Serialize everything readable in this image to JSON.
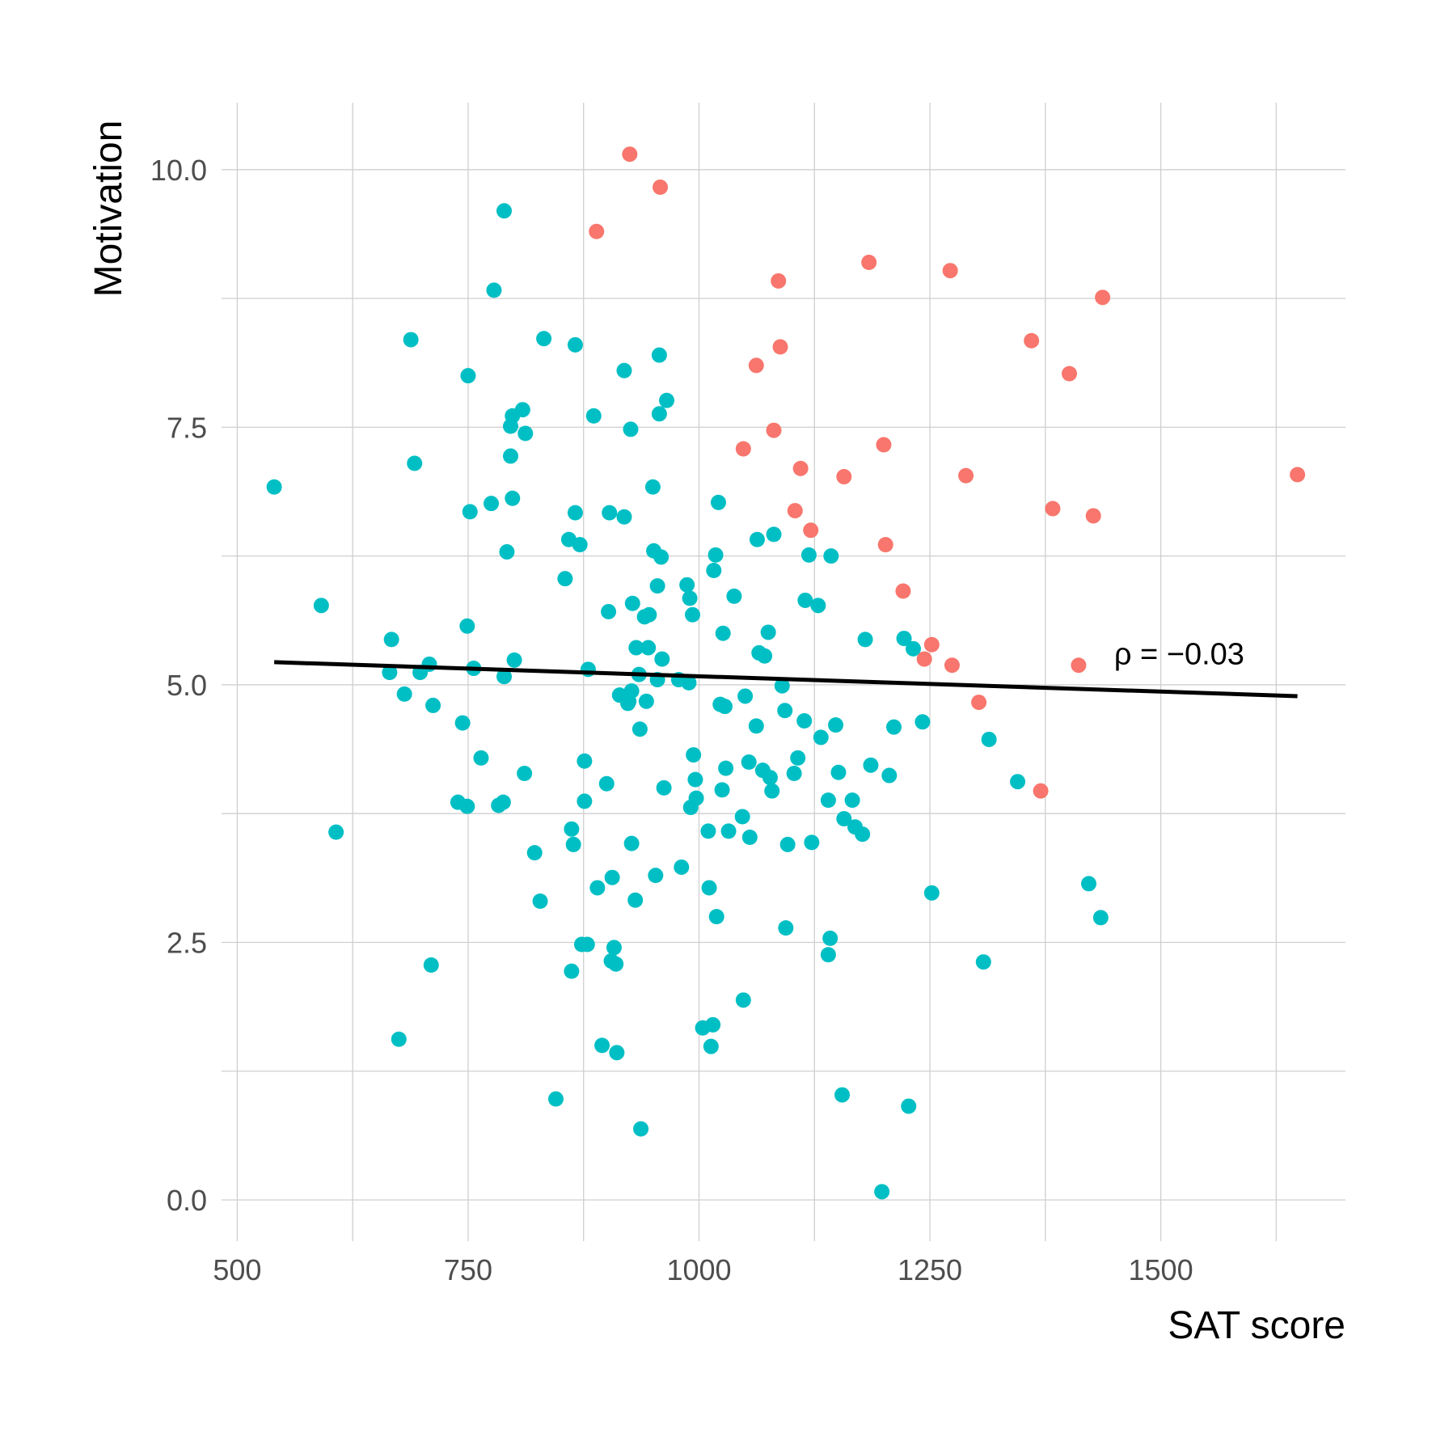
{
  "chart_data": {
    "type": "scatter",
    "xlabel": "SAT score",
    "ylabel": "Motivation",
    "xlim": [
      483,
      1700
    ],
    "ylim": [
      -0.4,
      10.65
    ],
    "x_major_ticks": [
      500,
      750,
      1000,
      1250,
      1500
    ],
    "x_major_tick_labels": [
      "500",
      "750",
      "1000",
      "1250",
      "1500"
    ],
    "x_minor_ticks": [
      625,
      875,
      1125,
      1375,
      1625
    ],
    "y_major_ticks": [
      0,
      2.5,
      5,
      7.5,
      10
    ],
    "y_major_tick_labels": [
      "0.0",
      "2.5",
      "5.0",
      "7.5",
      "10.0"
    ],
    "y_minor_ticks": [
      1.25,
      3.75,
      6.25,
      8.75
    ],
    "grid": true,
    "colors": {
      "group_a": "#F8766D",
      "group_b": "#00BFC4",
      "trend": "#000000"
    },
    "annotation": {
      "text": "ρ = −0.03",
      "x": 1520,
      "y": 5.3
    },
    "trend_line": {
      "x": [
        540,
        1648
      ],
      "y": [
        5.22,
        4.89
      ]
    },
    "series": [
      {
        "color_key": "group_a",
        "points": [
          [
            925,
            10.15
          ],
          [
            958,
            9.83
          ],
          [
            889,
            9.4
          ],
          [
            1184,
            9.1
          ],
          [
            1272,
            9.02
          ],
          [
            1086,
            8.92
          ],
          [
            1437,
            8.76
          ],
          [
            1360,
            8.34
          ],
          [
            1088,
            8.28
          ],
          [
            1401,
            8.02
          ],
          [
            1062,
            8.1
          ],
          [
            1081,
            7.47
          ],
          [
            1200,
            7.33
          ],
          [
            1048,
            7.29
          ],
          [
            1110,
            7.1
          ],
          [
            1157,
            7.02
          ],
          [
            1289,
            7.03
          ],
          [
            1648,
            7.04
          ],
          [
            1104,
            6.69
          ],
          [
            1383,
            6.71
          ],
          [
            1427,
            6.64
          ],
          [
            1121,
            6.5
          ],
          [
            1202,
            6.36
          ],
          [
            1221,
            5.91
          ],
          [
            1252,
            5.39
          ],
          [
            1244,
            5.25
          ],
          [
            1274,
            5.19
          ],
          [
            1411,
            5.19
          ],
          [
            1303,
            4.83
          ],
          [
            1370,
            3.97
          ]
        ]
      },
      {
        "color_key": "group_b",
        "points": [
          [
            540,
            6.92
          ],
          [
            591,
            5.77
          ],
          [
            607,
            3.57
          ],
          [
            667,
            5.44
          ],
          [
            665,
            5.12
          ],
          [
            675,
            1.56
          ],
          [
            681,
            4.91
          ],
          [
            688,
            8.35
          ],
          [
            692,
            7.15
          ],
          [
            698,
            5.12
          ],
          [
            708,
            5.2
          ],
          [
            710,
            2.28
          ],
          [
            712,
            4.8
          ],
          [
            744,
            4.63
          ],
          [
            749,
            3.82
          ],
          [
            750,
            8.0
          ],
          [
            749,
            5.57
          ],
          [
            752,
            6.68
          ],
          [
            756,
            5.16
          ],
          [
            764,
            4.29
          ],
          [
            739,
            3.86
          ],
          [
            775,
            6.76
          ],
          [
            778,
            8.83
          ],
          [
            783,
            3.83
          ],
          [
            788,
            3.86
          ],
          [
            789,
            9.6
          ],
          [
            789,
            5.08
          ],
          [
            792,
            6.29
          ],
          [
            796,
            7.22
          ],
          [
            796,
            7.51
          ],
          [
            798,
            6.81
          ],
          [
            798,
            7.61
          ],
          [
            800,
            5.24
          ],
          [
            809,
            7.67
          ],
          [
            811,
            4.14
          ],
          [
            812,
            7.44
          ],
          [
            822,
            3.37
          ],
          [
            828,
            2.9
          ],
          [
            832,
            8.36
          ],
          [
            845,
            0.98
          ],
          [
            855,
            6.03
          ],
          [
            859,
            6.41
          ],
          [
            862,
            3.6
          ],
          [
            862,
            2.22
          ],
          [
            864,
            3.45
          ],
          [
            866,
            8.3
          ],
          [
            866,
            6.67
          ],
          [
            871,
            6.36
          ],
          [
            873,
            2.48
          ],
          [
            876,
            4.26
          ],
          [
            876,
            3.87
          ],
          [
            879,
            2.48
          ],
          [
            880,
            5.15
          ],
          [
            886,
            7.61
          ],
          [
            890,
            3.03
          ],
          [
            895,
            1.5
          ],
          [
            900,
            4.04
          ],
          [
            902,
            5.71
          ],
          [
            903,
            6.67
          ],
          [
            905,
            2.32
          ],
          [
            906,
            3.13
          ],
          [
            908,
            2.45
          ],
          [
            910,
            2.29
          ],
          [
            911,
            1.43
          ],
          [
            914,
            4.9
          ],
          [
            919,
            8.05
          ],
          [
            919,
            6.63
          ],
          [
            923,
            4.82
          ],
          [
            924,
            4.84
          ],
          [
            926,
            7.48
          ],
          [
            927,
            3.46
          ],
          [
            927,
            4.94
          ],
          [
            928,
            5.79
          ],
          [
            931,
            2.91
          ],
          [
            932,
            5.36
          ],
          [
            935,
            5.1
          ],
          [
            936,
            4.57
          ],
          [
            937,
            0.69
          ],
          [
            941,
            5.66
          ],
          [
            943,
            4.84
          ],
          [
            945,
            5.36
          ],
          [
            946,
            5.68
          ],
          [
            950,
            6.92
          ],
          [
            951,
            6.3
          ],
          [
            953,
            3.15
          ],
          [
            955,
            5.96
          ],
          [
            955,
            5.05
          ],
          [
            957,
            7.63
          ],
          [
            957,
            8.2
          ],
          [
            959,
            6.24
          ],
          [
            960,
            5.25
          ],
          [
            962,
            4.0
          ],
          [
            965,
            7.76
          ],
          [
            978,
            5.05
          ],
          [
            981,
            3.23
          ],
          [
            987,
            5.97
          ],
          [
            989,
            5.02
          ],
          [
            990,
            5.84
          ],
          [
            991,
            3.81
          ],
          [
            993,
            5.68
          ],
          [
            994,
            4.32
          ],
          [
            996,
            4.08
          ],
          [
            997,
            3.9
          ],
          [
            1004,
            1.67
          ],
          [
            1010,
            3.58
          ],
          [
            1011,
            3.03
          ],
          [
            1013,
            1.49
          ],
          [
            1015,
            1.7
          ],
          [
            1016,
            6.11
          ],
          [
            1018,
            6.26
          ],
          [
            1019,
            2.75
          ],
          [
            1021,
            6.77
          ],
          [
            1023,
            4.81
          ],
          [
            1025,
            3.98
          ],
          [
            1026,
            5.5
          ],
          [
            1028,
            4.79
          ],
          [
            1029,
            4.19
          ],
          [
            1032,
            3.58
          ],
          [
            1038,
            5.86
          ],
          [
            1047,
            3.72
          ],
          [
            1048,
            1.94
          ],
          [
            1050,
            4.89
          ],
          [
            1054,
            4.25
          ],
          [
            1055,
            3.52
          ],
          [
            1062,
            4.6
          ],
          [
            1063,
            6.41
          ],
          [
            1065,
            5.31
          ],
          [
            1069,
            4.17
          ],
          [
            1071,
            5.28
          ],
          [
            1075,
            5.51
          ],
          [
            1077,
            4.1
          ],
          [
            1079,
            3.97
          ],
          [
            1081,
            6.46
          ],
          [
            1090,
            4.99
          ],
          [
            1093,
            4.75
          ],
          [
            1094,
            2.64
          ],
          [
            1096,
            3.45
          ],
          [
            1103,
            4.14
          ],
          [
            1107,
            4.29
          ],
          [
            1114,
            4.65
          ],
          [
            1115,
            5.82
          ],
          [
            1119,
            6.26
          ],
          [
            1122,
            3.47
          ],
          [
            1129,
            5.77
          ],
          [
            1132,
            4.49
          ],
          [
            1140,
            3.88
          ],
          [
            1140,
            2.38
          ],
          [
            1142,
            2.54
          ],
          [
            1143,
            6.25
          ],
          [
            1148,
            4.61
          ],
          [
            1151,
            4.15
          ],
          [
            1155,
            1.02
          ],
          [
            1157,
            3.7
          ],
          [
            1166,
            3.88
          ],
          [
            1169,
            3.62
          ],
          [
            1177,
            3.55
          ],
          [
            1180,
            5.44
          ],
          [
            1186,
            4.22
          ],
          [
            1198,
            0.08
          ],
          [
            1206,
            4.12
          ],
          [
            1211,
            4.59
          ],
          [
            1222,
            5.45
          ],
          [
            1227,
            0.91
          ],
          [
            1232,
            5.35
          ],
          [
            1242,
            4.64
          ],
          [
            1252,
            2.98
          ],
          [
            1308,
            2.31
          ],
          [
            1314,
            4.47
          ],
          [
            1345,
            4.06
          ],
          [
            1422,
            3.07
          ],
          [
            1435,
            2.74
          ]
        ]
      }
    ]
  }
}
